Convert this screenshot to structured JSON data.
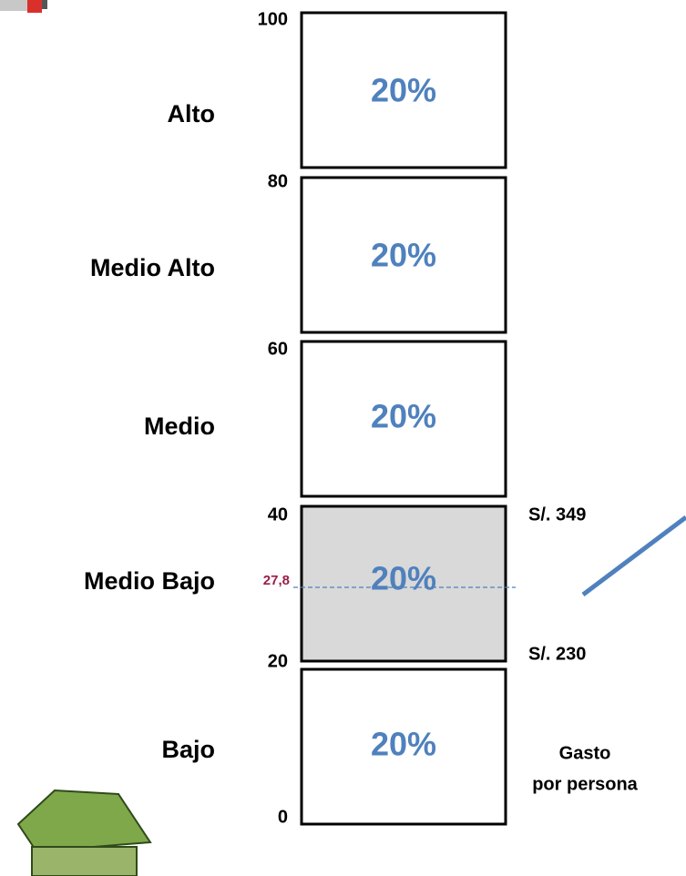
{
  "levels": [
    {
      "label": "Alto",
      "share": "20%"
    },
    {
      "label": "Medio Alto",
      "share": "20%"
    },
    {
      "label": "Medio",
      "share": "20%"
    },
    {
      "label": "Medio Bajo",
      "share": "20%"
    },
    {
      "label": "Bajo",
      "share": "20%"
    }
  ],
  "ticks": [
    "100",
    "80",
    "60",
    "40",
    "20",
    "0"
  ],
  "marker": "27,8",
  "spend_labels": [
    "S/. 349",
    "S/. 230"
  ],
  "axis_title": [
    "Gasto",
    "por persona"
  ]
}
